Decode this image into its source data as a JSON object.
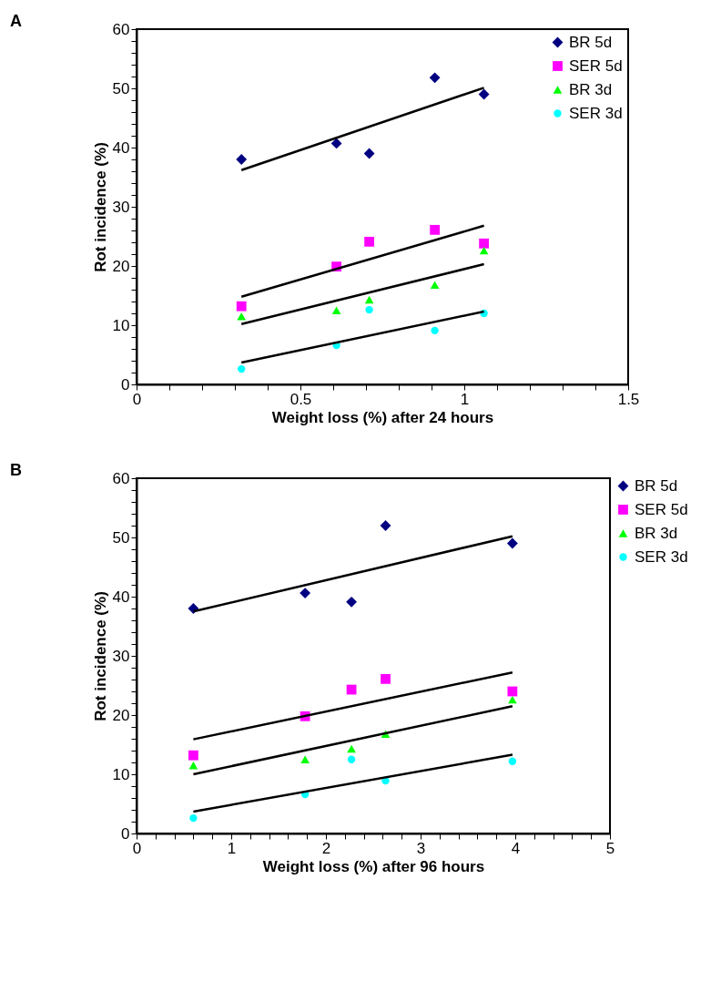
{
  "chart_data": [
    {
      "type": "scatter",
      "title": "A",
      "xlabel": "Weight loss (%) after 24 hours",
      "ylabel": "Rot incidence (%)",
      "xlim": [
        0,
        1.5
      ],
      "xticks": [
        0,
        {
          "value": 0.1,
          "label": null
        },
        {
          "value": 0.2,
          "label": null
        },
        {
          "value": 0.3,
          "label": null
        },
        {
          "value": 0.4,
          "label": null
        },
        0.5,
        {
          "value": 0.6,
          "label": null
        },
        {
          "value": 0.7,
          "label": null
        },
        {
          "value": 0.8,
          "label": null
        },
        {
          "value": 0.9,
          "label": null
        },
        1,
        {
          "value": 1.1,
          "label": null
        },
        {
          "value": 1.2,
          "label": null
        },
        {
          "value": 1.3,
          "label": null
        },
        {
          "value": 1.4,
          "label": null
        },
        1.5
      ],
      "ylim": [
        0,
        60
      ],
      "yticks": [
        0,
        {
          "value": 2,
          "label": null
        },
        {
          "value": 4,
          "label": null
        },
        {
          "value": 6,
          "label": null
        },
        {
          "value": 8,
          "label": null
        },
        10,
        {
          "value": 12,
          "label": null
        },
        {
          "value": 14,
          "label": null
        },
        {
          "value": 16,
          "label": null
        },
        {
          "value": 18,
          "label": null
        },
        20,
        {
          "value": 22,
          "label": null
        },
        {
          "value": 24,
          "label": null
        },
        {
          "value": 26,
          "label": null
        },
        {
          "value": 28,
          "label": null
        },
        30,
        {
          "value": 32,
          "label": null
        },
        {
          "value": 34,
          "label": null
        },
        {
          "value": 36,
          "label": null
        },
        {
          "value": 38,
          "label": null
        },
        40,
        {
          "value": 42,
          "label": null
        },
        {
          "value": 44,
          "label": null
        },
        {
          "value": 46,
          "label": null
        },
        {
          "value": 48,
          "label": null
        },
        50,
        {
          "value": 52,
          "label": null
        },
        {
          "value": 54,
          "label": null
        },
        {
          "value": 56,
          "label": null
        },
        {
          "value": 58,
          "label": null
        },
        60
      ],
      "grid": false,
      "legend": "top right",
      "x": [
        0.32,
        0.61,
        0.71,
        0.91,
        1.06
      ],
      "series": [
        {
          "name": "BR 5d",
          "color": "#000080",
          "marker": "diamond",
          "values": [
            38,
            40.7,
            39,
            51.8,
            49
          ]
        },
        {
          "name": "SER 5d",
          "color": "#ff00ff",
          "marker": "square",
          "values": [
            13.2,
            19.9,
            24.1,
            26.1,
            23.8
          ]
        },
        {
          "name": "BR 3d",
          "color": "#00ff00",
          "marker": "triangle",
          "values": [
            11.5,
            12.5,
            14.3,
            16.8,
            22.6
          ]
        },
        {
          "name": "SER 3d",
          "color": "#00ffff",
          "marker": "circle",
          "values": [
            2.6,
            6.6,
            12.6,
            9.1,
            12
          ]
        },
        {
          "type": "line",
          "color": "#000000",
          "marker": "none",
          "x": [
            0.32,
            1.06
          ],
          "values": [
            36.2,
            50.1
          ]
        },
        {
          "type": "line",
          "color": "#000000",
          "marker": "none",
          "x": [
            0.32,
            1.06
          ],
          "values": [
            14.8,
            26.8
          ]
        },
        {
          "type": "line",
          "color": "#000000",
          "marker": "none",
          "x": [
            0.32,
            1.06
          ],
          "values": [
            10.2,
            20.3
          ]
        },
        {
          "type": "line",
          "color": "#000000",
          "marker": "none",
          "x": [
            0.32,
            1.06
          ],
          "values": [
            3.7,
            12.3
          ]
        }
      ]
    },
    {
      "type": "scatter",
      "title": "B",
      "xlabel": "Weight loss (%) after 96 hours",
      "ylabel": "Rot incidence (%)",
      "xlim": [
        0,
        5
      ],
      "xticks": [
        0,
        {
          "value": 0.2,
          "label": null
        },
        {
          "value": 0.4,
          "label": null
        },
        {
          "value": 0.6,
          "label": null
        },
        {
          "value": 0.8,
          "label": null
        },
        1,
        {
          "value": 1.2,
          "label": null
        },
        {
          "value": 1.4,
          "label": null
        },
        {
          "value": 1.6,
          "label": null
        },
        {
          "value": 1.8,
          "label": null
        },
        2,
        {
          "value": 2.2,
          "label": null
        },
        {
          "value": 2.4,
          "label": null
        },
        {
          "value": 2.6,
          "label": null
        },
        {
          "value": 2.8,
          "label": null
        },
        3,
        {
          "value": 3.2,
          "label": null
        },
        {
          "value": 3.4,
          "label": null
        },
        {
          "value": 3.6,
          "label": null
        },
        {
          "value": 3.8,
          "label": null
        },
        4,
        {
          "value": 4.2,
          "label": null
        },
        {
          "value": 4.4,
          "label": null
        },
        {
          "value": 4.6,
          "label": null
        },
        {
          "value": 4.8,
          "label": null
        },
        5
      ],
      "ylim": [
        0,
        60
      ],
      "yticks": [
        0,
        {
          "value": 2,
          "label": null
        },
        {
          "value": 4,
          "label": null
        },
        {
          "value": 6,
          "label": null
        },
        {
          "value": 8,
          "label": null
        },
        10,
        {
          "value": 12,
          "label": null
        },
        {
          "value": 14,
          "label": null
        },
        {
          "value": 16,
          "label": null
        },
        {
          "value": 18,
          "label": null
        },
        20,
        {
          "value": 22,
          "label": null
        },
        {
          "value": 24,
          "label": null
        },
        {
          "value": 26,
          "label": null
        },
        {
          "value": 28,
          "label": null
        },
        30,
        {
          "value": 32,
          "label": null
        },
        {
          "value": 34,
          "label": null
        },
        {
          "value": 36,
          "label": null
        },
        {
          "value": 38,
          "label": null
        },
        40,
        {
          "value": 42,
          "label": null
        },
        {
          "value": 44,
          "label": null
        },
        {
          "value": 46,
          "label": null
        },
        {
          "value": 48,
          "label": null
        },
        50,
        {
          "value": 52,
          "label": null
        },
        {
          "value": 54,
          "label": null
        },
        {
          "value": 56,
          "label": null
        },
        {
          "value": 58,
          "label": null
        },
        60
      ],
      "grid": false,
      "legend": "right",
      "x": [
        0.6,
        1.78,
        2.27,
        2.63,
        3.97
      ],
      "series": [
        {
          "name": "BR 5d",
          "color": "#000080",
          "marker": "diamond",
          "values": [
            38,
            40.6,
            39.1,
            52,
            49
          ]
        },
        {
          "name": "SER 5d",
          "color": "#ff00ff",
          "marker": "square",
          "values": [
            13.2,
            19.8,
            24.3,
            26.1,
            24
          ]
        },
        {
          "name": "BR 3d",
          "color": "#00ff00",
          "marker": "triangle",
          "values": [
            11.5,
            12.5,
            14.3,
            16.8,
            22.6
          ]
        },
        {
          "name": "SER 3d",
          "color": "#00ffff",
          "marker": "circle",
          "values": [
            2.6,
            6.6,
            12.5,
            8.9,
            12.2
          ]
        },
        {
          "type": "line",
          "color": "#000000",
          "marker": "none",
          "x": [
            0.6,
            3.97
          ],
          "values": [
            37.5,
            50.2
          ]
        },
        {
          "type": "line",
          "color": "#000000",
          "marker": "none",
          "x": [
            0.6,
            3.97
          ],
          "values": [
            15.9,
            27.2
          ]
        },
        {
          "type": "line",
          "color": "#000000",
          "marker": "none",
          "x": [
            0.6,
            3.97
          ],
          "values": [
            10,
            21.5
          ]
        },
        {
          "type": "line",
          "color": "#000000",
          "marker": "none",
          "x": [
            0.6,
            3.97
          ],
          "values": [
            3.7,
            13.3
          ]
        }
      ]
    }
  ]
}
